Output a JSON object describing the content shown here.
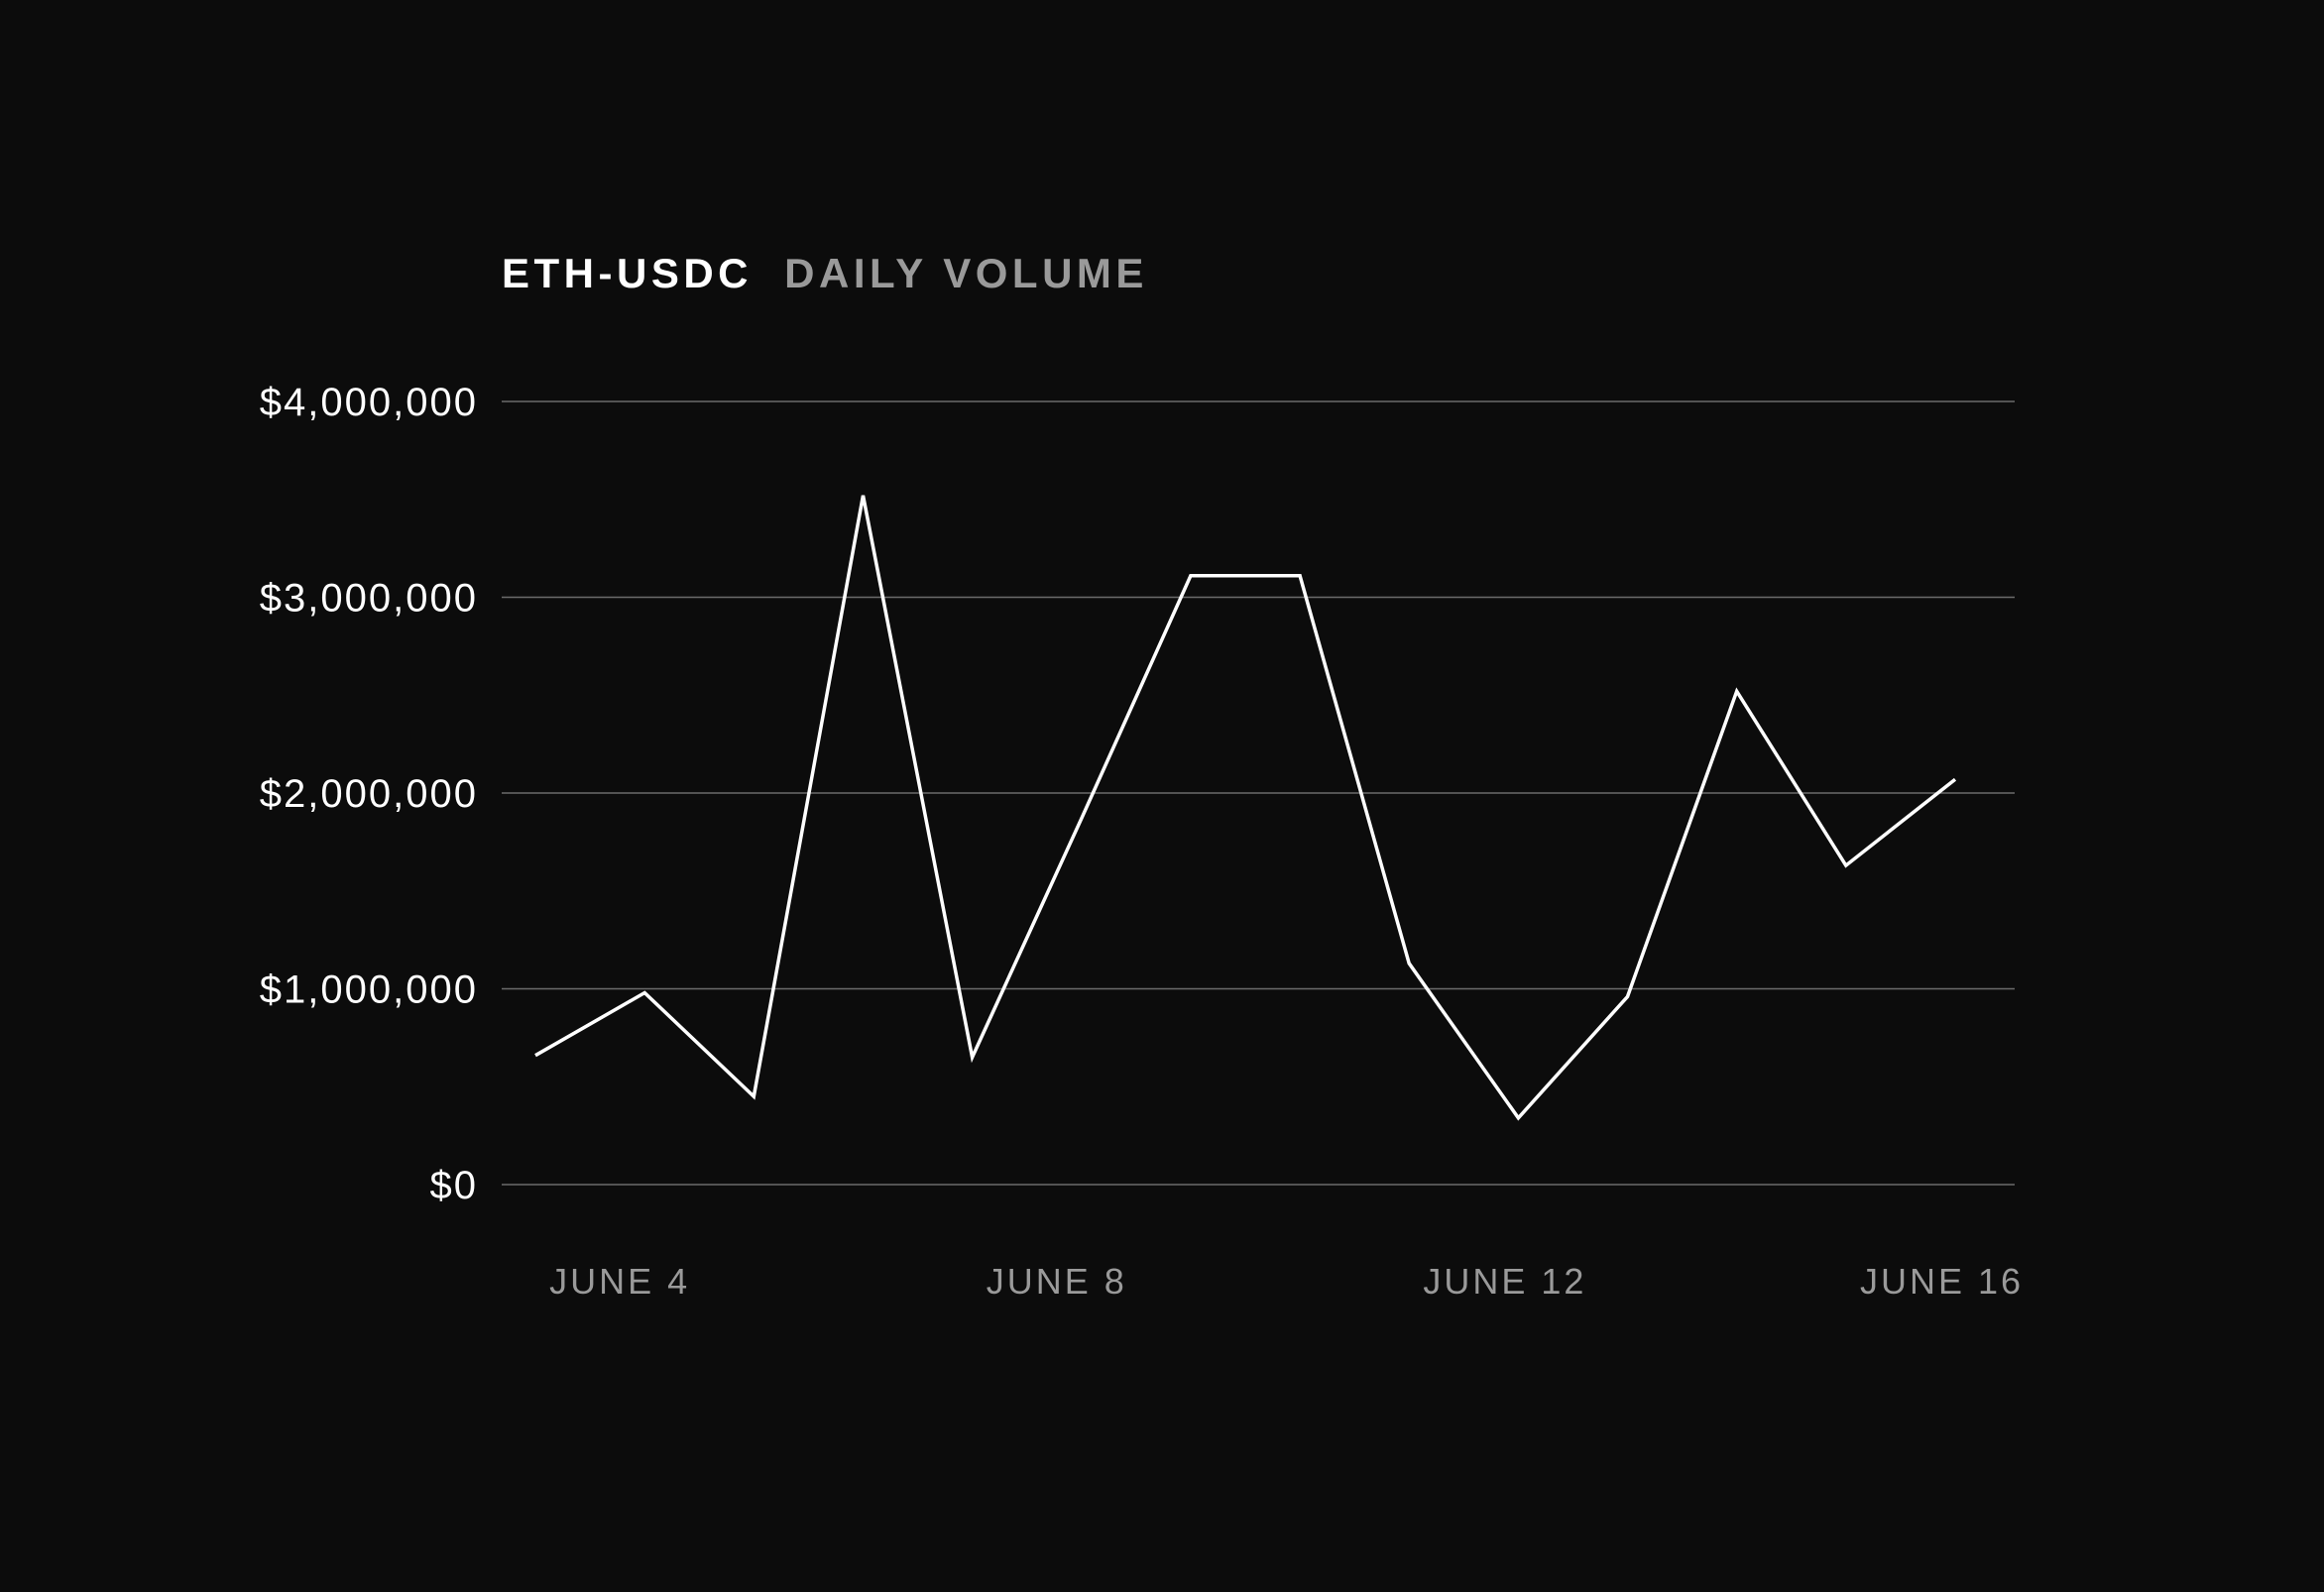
{
  "colors": {
    "background": "#0c0c0c",
    "line": "#ffffff",
    "grid": "#6b6b6b",
    "title_primary": "#ffffff",
    "title_secondary": "#9a9a9a",
    "y_tick_text": "#ffffff",
    "x_tick_text": "#9a9a9a"
  },
  "chart_data": {
    "type": "line",
    "title_primary": "ETH-USDC",
    "title_secondary": "DAILY VOLUME",
    "xlabel": "",
    "ylabel": "",
    "ylim": [
      0,
      4000000
    ],
    "grid": true,
    "y_ticks": [
      {
        "value": 4000000,
        "label": "$4,000,000"
      },
      {
        "value": 3000000,
        "label": "$3,000,000"
      },
      {
        "value": 2000000,
        "label": "$2,000,000"
      },
      {
        "value": 1000000,
        "label": "$1,000,000"
      },
      {
        "value": 0,
        "label": "$0"
      }
    ],
    "x_ticks": [
      {
        "day": 4,
        "label": "JUNE 4"
      },
      {
        "day": 8,
        "label": "JUNE 8"
      },
      {
        "day": 12,
        "label": "JUNE 12"
      },
      {
        "day": 16,
        "label": "JUNE 16"
      }
    ],
    "series": [
      {
        "points": [
          {
            "day": 3,
            "value": 660000
          },
          {
            "day": 4,
            "value": 980000
          },
          {
            "day": 5,
            "value": 450000
          },
          {
            "day": 6,
            "value": 3520000
          },
          {
            "day": 7,
            "value": 650000
          },
          {
            "day": 8,
            "value": 1870000
          },
          {
            "day": 9,
            "value": 3110000
          },
          {
            "day": 10,
            "value": 3110000
          },
          {
            "day": 11,
            "value": 1130000
          },
          {
            "day": 12,
            "value": 340000
          },
          {
            "day": 13,
            "value": 960000
          },
          {
            "day": 14,
            "value": 2520000
          },
          {
            "day": 15,
            "value": 1630000
          },
          {
            "day": 16,
            "value": 2070000
          }
        ]
      }
    ]
  }
}
